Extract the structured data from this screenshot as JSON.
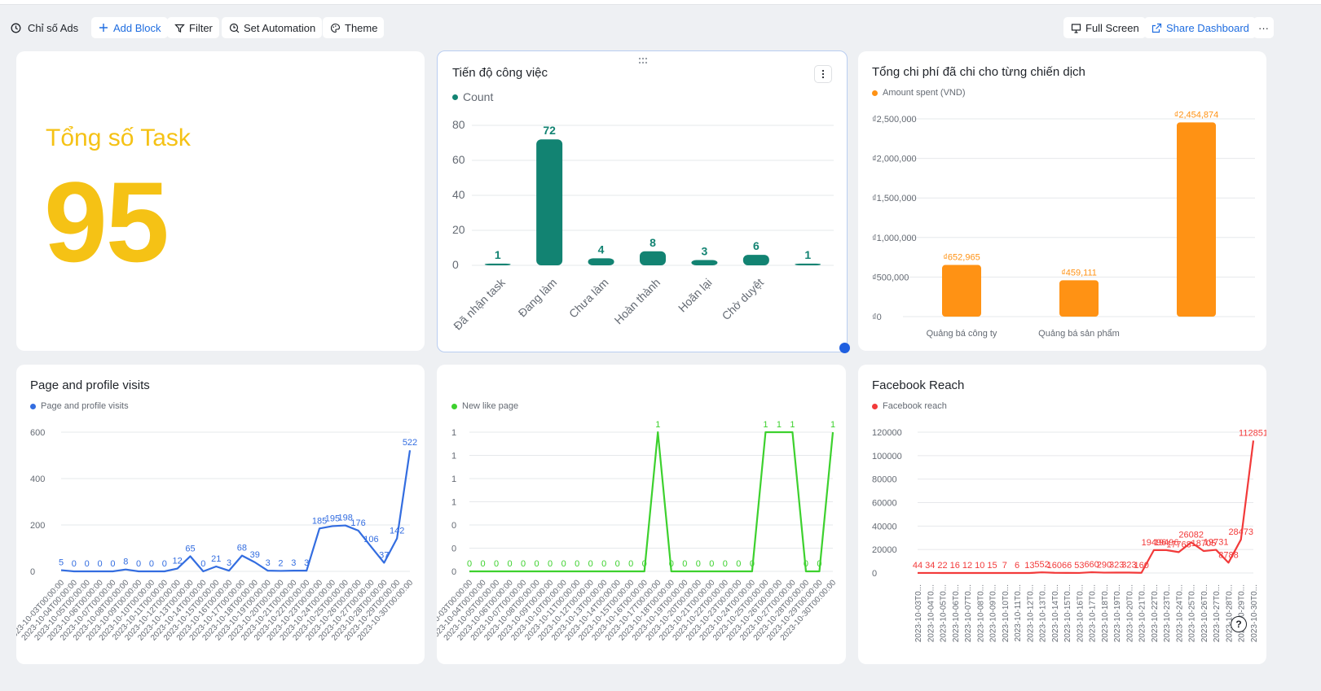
{
  "toolbar": {
    "title": "Chỉ số Ads",
    "add_block": "Add Block",
    "filter": "Filter",
    "set_automation": "Set Automation",
    "theme": "Theme",
    "full_screen": "Full Screen",
    "share_dashboard": "Share Dashboard",
    "more": "···"
  },
  "kpi": {
    "label": "Tổng số Task",
    "value": "95",
    "color": "#f5c215"
  },
  "widgets": {
    "progress": {
      "title": "Tiến độ công việc",
      "legend": "Count",
      "color": "#128372"
    },
    "spend": {
      "title": "Tổng chi phí đã chi cho từng chiến dịch",
      "legend": "Amount spent (VND)",
      "color": "#ff9214"
    },
    "visits": {
      "title": "Page and profile visits",
      "legend": "Page and profile visits",
      "color": "#336de0"
    },
    "likes": {
      "title": "",
      "legend": "New like page",
      "color": "#3dd12e"
    },
    "reach": {
      "title": "Facebook Reach",
      "legend": "Facebook reach",
      "color": "#f23a3a"
    }
  },
  "help": "?",
  "chart_data": [
    {
      "id": "progress",
      "type": "bar",
      "categories": [
        "Đã nhận task",
        "Đang làm",
        "Chưa làm",
        "Hoàn thành",
        "Hoãn lại",
        "Chờ duyệt",
        ""
      ],
      "series": [
        {
          "name": "Count",
          "values": [
            1,
            72,
            4,
            8,
            3,
            6,
            1
          ]
        }
      ],
      "ylim": [
        0,
        80
      ],
      "yticks": [
        "0",
        "20",
        "40",
        "60",
        "80"
      ],
      "data_labels": [
        "1",
        "72",
        "4",
        "8",
        "3",
        "6",
        "1"
      ]
    },
    {
      "id": "spend",
      "type": "bar",
      "categories": [
        "Quảng bá công ty",
        "Quảng bá sản phẩm",
        ""
      ],
      "series": [
        {
          "name": "Amount spent (VND)",
          "values": [
            652965,
            459111,
            2454874
          ]
        }
      ],
      "ylim": [
        0,
        2500000
      ],
      "yticks": [
        "₫0",
        "₫500,000",
        "₫1,000,000",
        "₫1,500,000",
        "₫2,000,000",
        "₫2,500,000"
      ],
      "data_labels": [
        "₫652,965",
        "₫459,111",
        "₫2,454,874"
      ]
    },
    {
      "id": "visits",
      "type": "line",
      "x": [
        "2023-10-03T00:00:00",
        "2023-10-04T00:00:00",
        "2023-10-05T00:00:00",
        "2023-10-06T00:00:00",
        "2023-10-07T00:00:00",
        "2023-10-08T00:00:00",
        "2023-10-09T00:00:00",
        "2023-10-10T00:00:00",
        "2023-10-11T00:00:00",
        "2023-10-12T00:00:00",
        "2023-10-13T00:00:00",
        "2023-10-14T00:00:00",
        "2023-10-15T00:00:00",
        "2023-10-16T00:00:00",
        "2023-10-17T00:00:00",
        "2023-10-18T00:00:00",
        "2023-10-19T00:00:00",
        "2023-10-20T00:00:00",
        "2023-10-21T00:00:00",
        "2023-10-22T00:00:00",
        "2023-10-23T00:00:00",
        "2023-10-24T00:00:00",
        "2023-10-25T00:00:00",
        "2023-10-26T00:00:00",
        "2023-10-27T00:00:00",
        "2023-10-28T00:00:00",
        "2023-10-29T00:00:00",
        "2023-10-30T00:00:00"
      ],
      "series": [
        {
          "name": "Page and profile visits",
          "values": [
            5,
            0,
            0,
            0,
            0,
            8,
            0,
            0,
            0,
            12,
            65,
            0,
            21,
            3,
            68,
            39,
            3,
            2,
            3,
            3,
            185,
            195,
            198,
            176,
            106,
            37,
            142,
            522
          ]
        }
      ],
      "ylim": [
        0,
        600
      ],
      "yticks": [
        "0",
        "200",
        "400",
        "600"
      ]
    },
    {
      "id": "likes",
      "type": "line",
      "x": [
        "2023-10-03T00:00:00",
        "2023-10-04T00:00:00",
        "2023-10-05T00:00:00",
        "2023-10-06T00:00:00",
        "2023-10-07T00:00:00",
        "2023-10-08T00:00:00",
        "2023-10-09T00:00:00",
        "2023-10-10T00:00:00",
        "2023-10-11T00:00:00",
        "2023-10-12T00:00:00",
        "2023-10-13T00:00:00",
        "2023-10-14T00:00:00",
        "2023-10-15T00:00:00",
        "2023-10-16T00:00:00",
        "2023-10-17T00:00:00",
        "2023-10-18T00:00:00",
        "2023-10-19T00:00:00",
        "2023-10-20T00:00:00",
        "2023-10-21T00:00:00",
        "2023-10-22T00:00:00",
        "2023-10-23T00:00:00",
        "2023-10-24T00:00:00",
        "2023-10-25T00:00:00",
        "2023-10-26T00:00:00",
        "2023-10-27T00:00:00",
        "2023-10-28T00:00:00",
        "2023-10-29T00:00:00",
        "2023-10-30T00:00:00"
      ],
      "series": [
        {
          "name": "New like page",
          "values": [
            0,
            0,
            0,
            0,
            0,
            0,
            0,
            0,
            0,
            0,
            0,
            0,
            0,
            0,
            1,
            0,
            0,
            0,
            0,
            0,
            0,
            0,
            1,
            1,
            1,
            0,
            0,
            1
          ]
        }
      ],
      "ylim": [
        0,
        1
      ],
      "yticks": [
        "0",
        "0",
        "0",
        "1",
        "1",
        "1",
        "1"
      ]
    },
    {
      "id": "reach",
      "type": "line",
      "x": [
        "2023-10-03T0...",
        "2023-10-04T0...",
        "2023-10-05T0...",
        "2023-10-06T0...",
        "2023-10-07T0...",
        "2023-10-08T0...",
        "2023-10-09T0...",
        "2023-10-10T0...",
        "2023-10-11T0...",
        "2023-10-12T0...",
        "2023-10-13T0...",
        "2023-10-14T0...",
        "2023-10-15T0...",
        "2023-10-16T0...",
        "2023-10-17T0...",
        "2023-10-18T0...",
        "2023-10-19T0...",
        "2023-10-20T0...",
        "2023-10-21T0...",
        "2023-10-22T0...",
        "2023-10-23T0...",
        "2023-10-24T0...",
        "2023-10-25T0...",
        "2023-10-26T0...",
        "2023-10-27T0...",
        "2023-10-28T0...",
        "2023-10-29T0...",
        "2023-10-30T0..."
      ],
      "series": [
        {
          "name": "Facebook reach",
          "values": [
            44,
            34,
            22,
            16,
            12,
            10,
            15,
            7,
            6,
            13,
            552,
            160,
            66,
            53,
            660,
            290,
            323,
            323,
            160,
            19496,
            19496,
            17768,
            26082,
            18705,
            19731,
            8788,
            28473,
            112851
          ]
        }
      ],
      "ylim": [
        0,
        120000
      ],
      "yticks": [
        "0",
        "20000",
        "40000",
        "60000",
        "80000",
        "100000",
        "120000"
      ]
    }
  ]
}
